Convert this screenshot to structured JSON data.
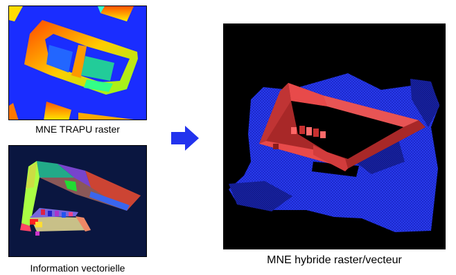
{
  "captions": {
    "raster": "MNE TRAPU raster",
    "vector": "Information vectorielle",
    "hybrid": "MNE hybride raster/vecteur"
  },
  "colors": {
    "raster_background": "#1a2dff",
    "vector_background": "#0a1640",
    "hybrid_background": "#000000",
    "arrow": "#2233ee",
    "building_red": "#e84a4a",
    "blue_ground": "#1f2fd6"
  }
}
